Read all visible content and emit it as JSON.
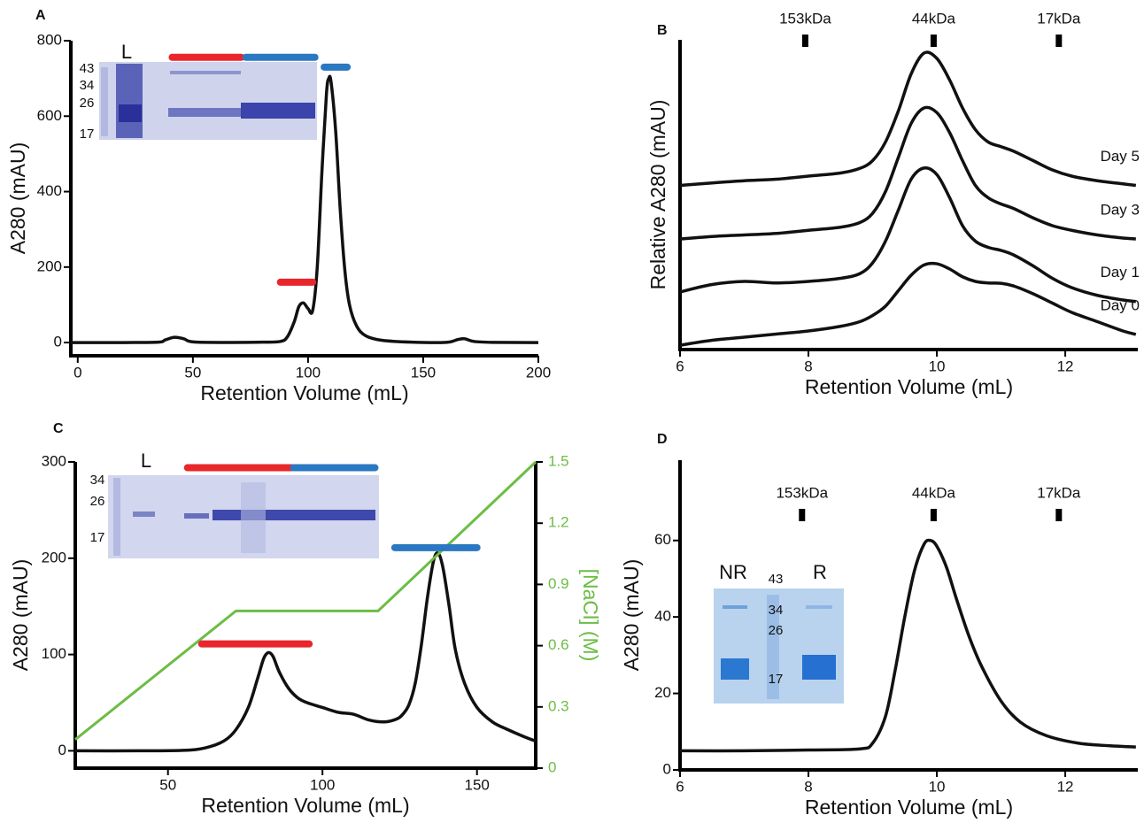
{
  "chart_data": [
    {
      "type": "line",
      "label": "A",
      "xlabel": "Retention Volume (mL)",
      "ylabel": "A280 (mAU)",
      "xlim": [
        -3,
        200
      ],
      "ylim": [
        -35,
        800
      ],
      "xticks": [
        0,
        50,
        100,
        150,
        200
      ],
      "yticks": [
        0,
        200,
        400,
        600,
        800
      ],
      "series": [
        {
          "color": "#111111",
          "x": [
            -3,
            20,
            35,
            38,
            42,
            46,
            52,
            80,
            88,
            91,
            94,
            96,
            98,
            100,
            102,
            104,
            106,
            108,
            109,
            110,
            112,
            114,
            116,
            118,
            121,
            125,
            132,
            145,
            160,
            165,
            168,
            172,
            180,
            200
          ],
          "values": [
            0,
            0,
            1,
            7,
            14,
            10,
            1,
            1,
            3,
            15,
            55,
            95,
            105,
            90,
            85,
            200,
            450,
            660,
            700,
            690,
            560,
            350,
            190,
            100,
            45,
            18,
            6,
            1,
            0.5,
            8,
            10,
            3,
            0.5,
            0
          ]
        }
      ],
      "fractions": [
        {
          "color": "#e8262b",
          "x": [
            41,
            71
          ],
          "y": 756
        },
        {
          "color": "#2a78c2",
          "x": [
            73,
            103
          ],
          "y": 756
        },
        {
          "color": "#2a78c2",
          "x": [
            107,
            117
          ],
          "y": 730
        },
        {
          "color": "#e8262b",
          "x": [
            88,
            102
          ],
          "y": 160
        }
      ],
      "inset": {
        "lane_labels": [
          "L"
        ],
        "markers": [
          "43",
          "34",
          "26",
          "17"
        ]
      }
    },
    {
      "type": "line",
      "label": "B",
      "xlabel": "Retention Volume (mL)",
      "ylabel": "Relative A280 (mAU)",
      "xlim": [
        6,
        13.13
      ],
      "ylim": [
        0,
        100
      ],
      "xticks": [
        6,
        8,
        10,
        12
      ],
      "x": [
        6,
        6.5,
        7,
        7.5,
        8,
        8.5,
        8.8,
        9.0,
        9.2,
        9.4,
        9.6,
        9.8,
        10.0,
        10.2,
        10.4,
        10.6,
        10.8,
        11.0,
        11.2,
        11.5,
        11.8,
        12.1,
        12.5,
        12.9,
        13.1
      ],
      "series": [
        {
          "name": "Day 5",
          "color": "#111111",
          "values": [
            53,
            53.8,
            54.5,
            55,
            56,
            57,
            58.5,
            61,
            67,
            77,
            89,
            95.7,
            94,
            87,
            78,
            71,
            67,
            65.5,
            64,
            61,
            58,
            56,
            54.5,
            53.5,
            53
          ]
        },
        {
          "name": "Day 3",
          "color": "#111111",
          "values": [
            35.7,
            36.5,
            37,
            37.5,
            38.5,
            39.5,
            41,
            44,
            51,
            62,
            73,
            78,
            76.5,
            70,
            61,
            53,
            49,
            47,
            45.5,
            42.5,
            40,
            38.5,
            37,
            36,
            35.7
          ]
        },
        {
          "name": "Day 1",
          "color": "#111111",
          "values": [
            18.6,
            21,
            22,
            21.5,
            22,
            23,
            24.5,
            28,
            35,
            45,
            55,
            58.6,
            56.5,
            49,
            40,
            35,
            33,
            32,
            30.5,
            27,
            23,
            20,
            17.5,
            16,
            15.5
          ]
        },
        {
          "name": "Day 0",
          "color": "#111111",
          "values": [
            1.4,
            3,
            4,
            5,
            6,
            7.5,
            9,
            11,
            14,
            19,
            24,
            27.3,
            27.7,
            26,
            23.5,
            22,
            21.5,
            21.4,
            20.5,
            18,
            15,
            12,
            9,
            6,
            4.9
          ]
        }
      ],
      "mw_markers": [
        {
          "label": "153kDa",
          "x": 7.95
        },
        {
          "label": "44kDa",
          "x": 9.95
        },
        {
          "label": "17kDa",
          "x": 11.9
        }
      ]
    },
    {
      "type": "line",
      "label": "C",
      "xlabel": "Retention Volume (mL)",
      "ylabel": "A280 (mAU)",
      "y2label": "[NaCl] (M)",
      "xlim": [
        20,
        169
      ],
      "ylim": [
        -18,
        300
      ],
      "y2lim": [
        0,
        1.5
      ],
      "xticks": [
        50,
        100,
        150
      ],
      "yticks": [
        0,
        100,
        200,
        300
      ],
      "y2ticks": [
        0,
        0.3,
        0.6,
        0.9,
        1.2,
        1.5
      ],
      "series": [
        {
          "color": "#111111",
          "x": [
            20,
            40,
            55,
            62,
            68,
            72,
            76,
            79,
            81,
            82.5,
            84,
            86,
            89,
            92,
            95,
            100,
            105,
            110,
            115,
            120,
            124,
            126,
            128,
            130,
            132,
            134,
            136,
            137.5,
            139,
            141,
            143,
            146,
            150,
            155,
            160,
            165,
            169
          ],
          "values": [
            0,
            0,
            0.5,
            3,
            10,
            22,
            45,
            75,
            96,
            102,
            98,
            82,
            65,
            55,
            50,
            45,
            40,
            38,
            32,
            30,
            33,
            38,
            48,
            70,
            110,
            160,
            198,
            205,
            190,
            150,
            105,
            70,
            45,
            30,
            22,
            15,
            10
          ]
        },
        {
          "color": "#6cbd45",
          "axis": "y2",
          "x": [
            20,
            72,
            118,
            169
          ],
          "values": [
            0.14,
            0.77,
            0.77,
            1.5
          ]
        }
      ],
      "fractions": [
        {
          "color": "#e8262b",
          "x": [
            56.3,
            90
          ],
          "y": 294
        },
        {
          "color": "#2a78c2",
          "x": [
            90.6,
            117
          ],
          "y": 294
        },
        {
          "color": "#2a78c2",
          "x": [
            123.4,
            150
          ],
          "y": 211
        },
        {
          "color": "#e8262b",
          "x": [
            60.9,
            95.7
          ],
          "y": 111
        }
      ],
      "inset": {
        "lane_labels": [
          "L"
        ],
        "markers": [
          "34",
          "26",
          "17"
        ]
      }
    },
    {
      "type": "line",
      "label": "D",
      "xlabel": "Retention Volume (mL)",
      "ylabel": "A280 (mAU)",
      "xlim": [
        6,
        13.13
      ],
      "ylim": [
        0,
        81
      ],
      "xticks": [
        6,
        8,
        10,
        12
      ],
      "yticks": [
        0,
        20,
        40,
        60
      ],
      "series": [
        {
          "color": "#111111",
          "x": [
            6,
            7,
            8,
            8.8,
            9.0,
            9.2,
            9.35,
            9.5,
            9.65,
            9.8,
            9.9,
            10.0,
            10.15,
            10.3,
            10.5,
            10.7,
            11.0,
            11.3,
            11.7,
            12.2,
            12.7,
            13.1
          ],
          "values": [
            5,
            5,
            5.2,
            5.5,
            7,
            14,
            26,
            40,
            52,
            59,
            60,
            58.5,
            53,
            45,
            35,
            27,
            18,
            12.5,
            9,
            7,
            6.3,
            6
          ]
        }
      ],
      "mw_markers": [
        {
          "label": "153kDa",
          "x": 7.9
        },
        {
          "label": "44kDa",
          "x": 9.95
        },
        {
          "label": "17kDa",
          "x": 11.9
        }
      ],
      "inset": {
        "lane_labels": [
          "NR",
          "R"
        ],
        "markers": [
          "43",
          "34",
          "26",
          "17"
        ]
      }
    }
  ]
}
